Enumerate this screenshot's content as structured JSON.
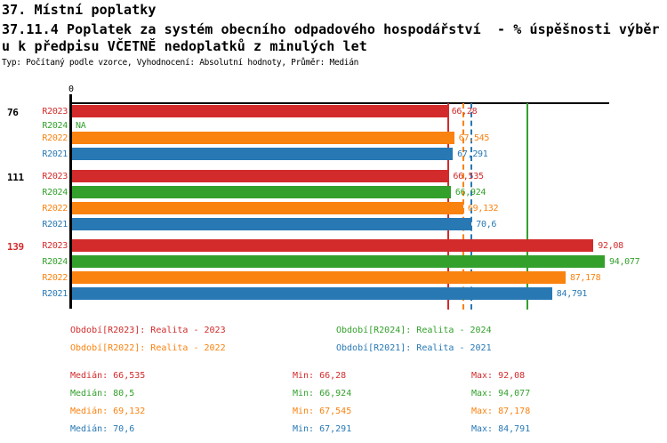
{
  "header": {
    "title_line1": "37. Místní poplatky",
    "title_line2": "37.11.4 Poplatek za systém obecního odpadového hospodářství  - % úspěšnosti výběr",
    "title_line3": "u k předpisu VČETNĚ nedoplatků z minulých let",
    "meta": "Typ: Počítaný podle vzorce, Vyhodnocení: Absolutní hodnoty, Průměr: Medián"
  },
  "chart_data": {
    "type": "bar",
    "orientation": "horizontal",
    "axis": {
      "origin_label": "0",
      "max": 94.077,
      "grid": false
    },
    "series_colors": {
      "R2023": "#d32b2b",
      "R2024": "#33a02c",
      "R2022": "#fa820f",
      "R2021": "#2878b4"
    },
    "na_text": "NA",
    "groups": [
      {
        "label": "76",
        "label_color": "#000000",
        "bars": [
          {
            "year": "R2023",
            "value": 66.28,
            "display": "66,28"
          },
          {
            "year": "R2024",
            "value": null,
            "display": "NA"
          },
          {
            "year": "R2022",
            "value": 67.545,
            "display": "67,545"
          },
          {
            "year": "R2021",
            "value": 67.291,
            "display": "67,291"
          }
        ]
      },
      {
        "label": "111",
        "label_color": "#000000",
        "bars": [
          {
            "year": "R2023",
            "value": 66.535,
            "display": "66,535"
          },
          {
            "year": "R2024",
            "value": 66.924,
            "display": "66,924"
          },
          {
            "year": "R2022",
            "value": 69.132,
            "display": "69,132"
          },
          {
            "year": "R2021",
            "value": 70.6,
            "display": "70,6"
          }
        ]
      },
      {
        "label": "139",
        "label_color": "#d32b2b",
        "bars": [
          {
            "year": "R2023",
            "value": 92.08,
            "display": "92,08"
          },
          {
            "year": "R2024",
            "value": 94.077,
            "display": "94,077"
          },
          {
            "year": "R2022",
            "value": 87.178,
            "display": "87,178"
          },
          {
            "year": "R2021",
            "value": 84.791,
            "display": "84,791"
          }
        ]
      }
    ],
    "median_lines": [
      {
        "year": "R2023",
        "value": 66.535,
        "style": "solid"
      },
      {
        "year": "R2022",
        "value": 69.132,
        "style": "dashed"
      },
      {
        "year": "R2021",
        "value": 70.6,
        "style": "dashed"
      },
      {
        "year": "R2024",
        "value": 80.5,
        "style": "solid"
      }
    ]
  },
  "legend": {
    "items": [
      {
        "year": "R2023",
        "text": "Období[R2023]: Realita - 2023"
      },
      {
        "year": "R2024",
        "text": "Období[R2024]: Realita - 2024"
      },
      {
        "year": "R2022",
        "text": "Období[R2022]: Realita - 2022"
      },
      {
        "year": "R2021",
        "text": "Období[R2021]: Realita - 2021"
      }
    ]
  },
  "stats": {
    "labels": {
      "median": "Medián",
      "min": "Min",
      "max": "Max"
    },
    "rows": [
      {
        "year": "R2023",
        "median": "66,535",
        "min": "66,28",
        "max": "92,08"
      },
      {
        "year": "R2024",
        "median": "80,5",
        "min": "66,924",
        "max": "94,077"
      },
      {
        "year": "R2022",
        "median": "69,132",
        "min": "67,545",
        "max": "87,178"
      },
      {
        "year": "R2021",
        "median": "70,6",
        "min": "67,291",
        "max": "84,791"
      }
    ]
  }
}
